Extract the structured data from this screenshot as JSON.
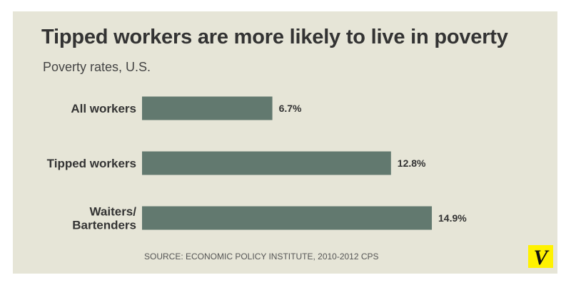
{
  "title": "Tipped workers are more likely to live in poverty",
  "subtitle": "Poverty rates, U.S.",
  "source": "SOURCE: ECONOMIC POLICY INSTITUTE, 2010-2012 CPS",
  "logo": {
    "text": "V",
    "background": "#fff200",
    "color": "#111111"
  },
  "colors": {
    "bar": "#62796f",
    "background": "#e6e5d7",
    "text": "#333333"
  },
  "chart_data": {
    "type": "bar",
    "orientation": "horizontal",
    "categories": [
      [
        "All workers"
      ],
      [
        "Tipped workers"
      ],
      [
        "Waiters/",
        "Bartenders"
      ]
    ],
    "values": [
      6.7,
      12.8,
      14.9
    ],
    "data_labels": [
      "6.7%",
      "12.8%",
      "14.9%"
    ],
    "title": "Tipped workers are more likely to live in poverty",
    "subtitle": "Poverty rates, U.S.",
    "xlabel": "",
    "ylabel": "",
    "xlim": [
      0,
      16
    ],
    "grid": false,
    "legend": "none"
  }
}
